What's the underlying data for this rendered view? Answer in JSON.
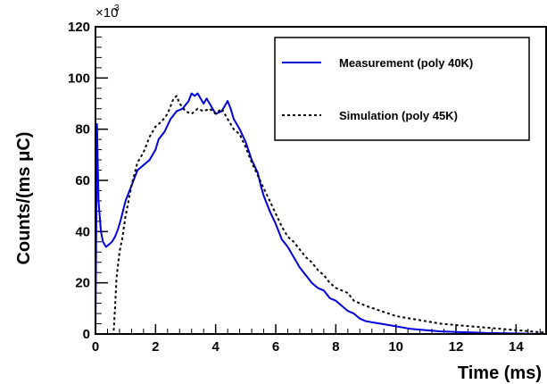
{
  "chart_data": {
    "type": "line",
    "xlabel": "Time (ms)",
    "ylabel": "Counts/(ms μC)",
    "y_multiplier": "×10",
    "y_multiplier_exp": "3",
    "xlim": [
      0,
      15
    ],
    "ylim": [
      0,
      120
    ],
    "x_ticks": [
      0,
      2,
      4,
      6,
      8,
      10,
      12,
      14
    ],
    "y_ticks": [
      0,
      20,
      40,
      60,
      80,
      100,
      120
    ],
    "grid": false,
    "legend_position": "top-right",
    "series": [
      {
        "name": "Measurement (poly 40K)",
        "style": "solid",
        "color": "#0000dd",
        "x": [
          0.0,
          0.05,
          0.1,
          0.18,
          0.25,
          0.35,
          0.45,
          0.55,
          0.65,
          0.75,
          0.85,
          1.0,
          1.2,
          1.4,
          1.6,
          1.8,
          2.0,
          2.1,
          2.3,
          2.5,
          2.7,
          2.9,
          3.1,
          3.2,
          3.3,
          3.4,
          3.5,
          3.6,
          3.7,
          3.8,
          3.9,
          4.0,
          4.2,
          4.4,
          4.5,
          4.6,
          4.8,
          5.0,
          5.2,
          5.4,
          5.5,
          5.6,
          5.8,
          6.0,
          6.2,
          6.4,
          6.6,
          6.8,
          7.0,
          7.2,
          7.4,
          7.6,
          7.8,
          8.0,
          8.2,
          8.4,
          8.6,
          8.8,
          9.0,
          9.5,
          10.0,
          10.5,
          11.0,
          11.5,
          12.0,
          12.5,
          13.0,
          13.5,
          14.0,
          14.5,
          15.0
        ],
        "y": [
          0,
          82,
          52,
          40,
          36,
          34,
          35,
          36,
          38,
          41,
          45,
          52,
          58,
          64,
          66,
          68,
          72,
          76,
          79,
          84,
          87,
          88,
          91,
          94,
          93,
          94,
          92,
          90,
          92,
          90,
          88,
          86,
          87,
          91,
          88,
          84,
          80,
          75,
          68,
          63,
          58,
          54,
          48,
          43,
          37,
          34,
          30,
          26,
          23,
          20,
          18,
          17,
          14,
          13,
          11,
          9,
          8,
          6,
          5,
          4,
          3,
          2,
          1.5,
          1,
          0.8,
          0.6,
          0.4,
          0.3,
          0.2,
          0.1,
          0
        ]
      },
      {
        "name": "Simulation (poly 45K)",
        "style": "dashed",
        "color": "#000000",
        "x": [
          0.0,
          0.6,
          0.65,
          0.7,
          0.8,
          0.9,
          1.0,
          1.2,
          1.4,
          1.6,
          1.8,
          2.0,
          2.2,
          2.4,
          2.6,
          2.7,
          2.8,
          3.0,
          3.2,
          3.4,
          3.6,
          3.8,
          4.0,
          4.2,
          4.4,
          4.6,
          4.8,
          5.0,
          5.2,
          5.4,
          5.6,
          5.8,
          6.0,
          6.2,
          6.4,
          6.6,
          6.8,
          7.0,
          7.2,
          7.4,
          7.6,
          7.8,
          8.0,
          8.2,
          8.4,
          8.6,
          8.8,
          9.0,
          9.5,
          10.0,
          10.5,
          11.0,
          11.5,
          12.0,
          12.5,
          13.0,
          13.5,
          14.0,
          14.5,
          15.0
        ],
        "y": [
          0,
          0,
          10,
          22,
          32,
          38,
          46,
          58,
          67,
          71,
          77,
          81,
          83,
          86,
          92,
          93,
          90,
          87,
          86,
          88,
          87,
          88,
          86,
          88,
          84,
          80,
          78,
          73,
          67,
          62,
          57,
          52,
          47,
          42,
          38,
          36,
          33,
          30,
          28,
          25,
          23,
          20,
          18,
          17,
          16,
          13,
          12,
          11,
          9,
          7,
          6,
          5,
          4,
          3.5,
          3,
          2.5,
          2,
          1.5,
          1,
          0.5
        ]
      }
    ]
  }
}
